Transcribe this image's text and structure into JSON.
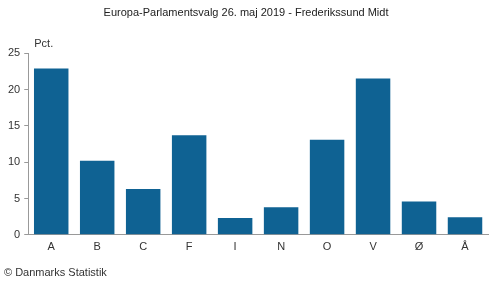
{
  "chart_data": {
    "type": "bar",
    "title": "Europa-Parlamentsvalg 26. maj 2019 - Frederikssund Midt",
    "ylabel": "Pct.",
    "source": "© Danmarks Statistik",
    "categories": [
      "A",
      "B",
      "C",
      "F",
      "I",
      "N",
      "O",
      "V",
      "Ø",
      "Å"
    ],
    "values": [
      22.9,
      10.2,
      6.3,
      13.7,
      2.3,
      3.8,
      13.1,
      21.5,
      4.6,
      2.4
    ],
    "color": "#0f6293",
    "ylim": [
      0,
      25
    ],
    "yticks": [
      0,
      5,
      10,
      15,
      20,
      25
    ],
    "grid": false
  }
}
